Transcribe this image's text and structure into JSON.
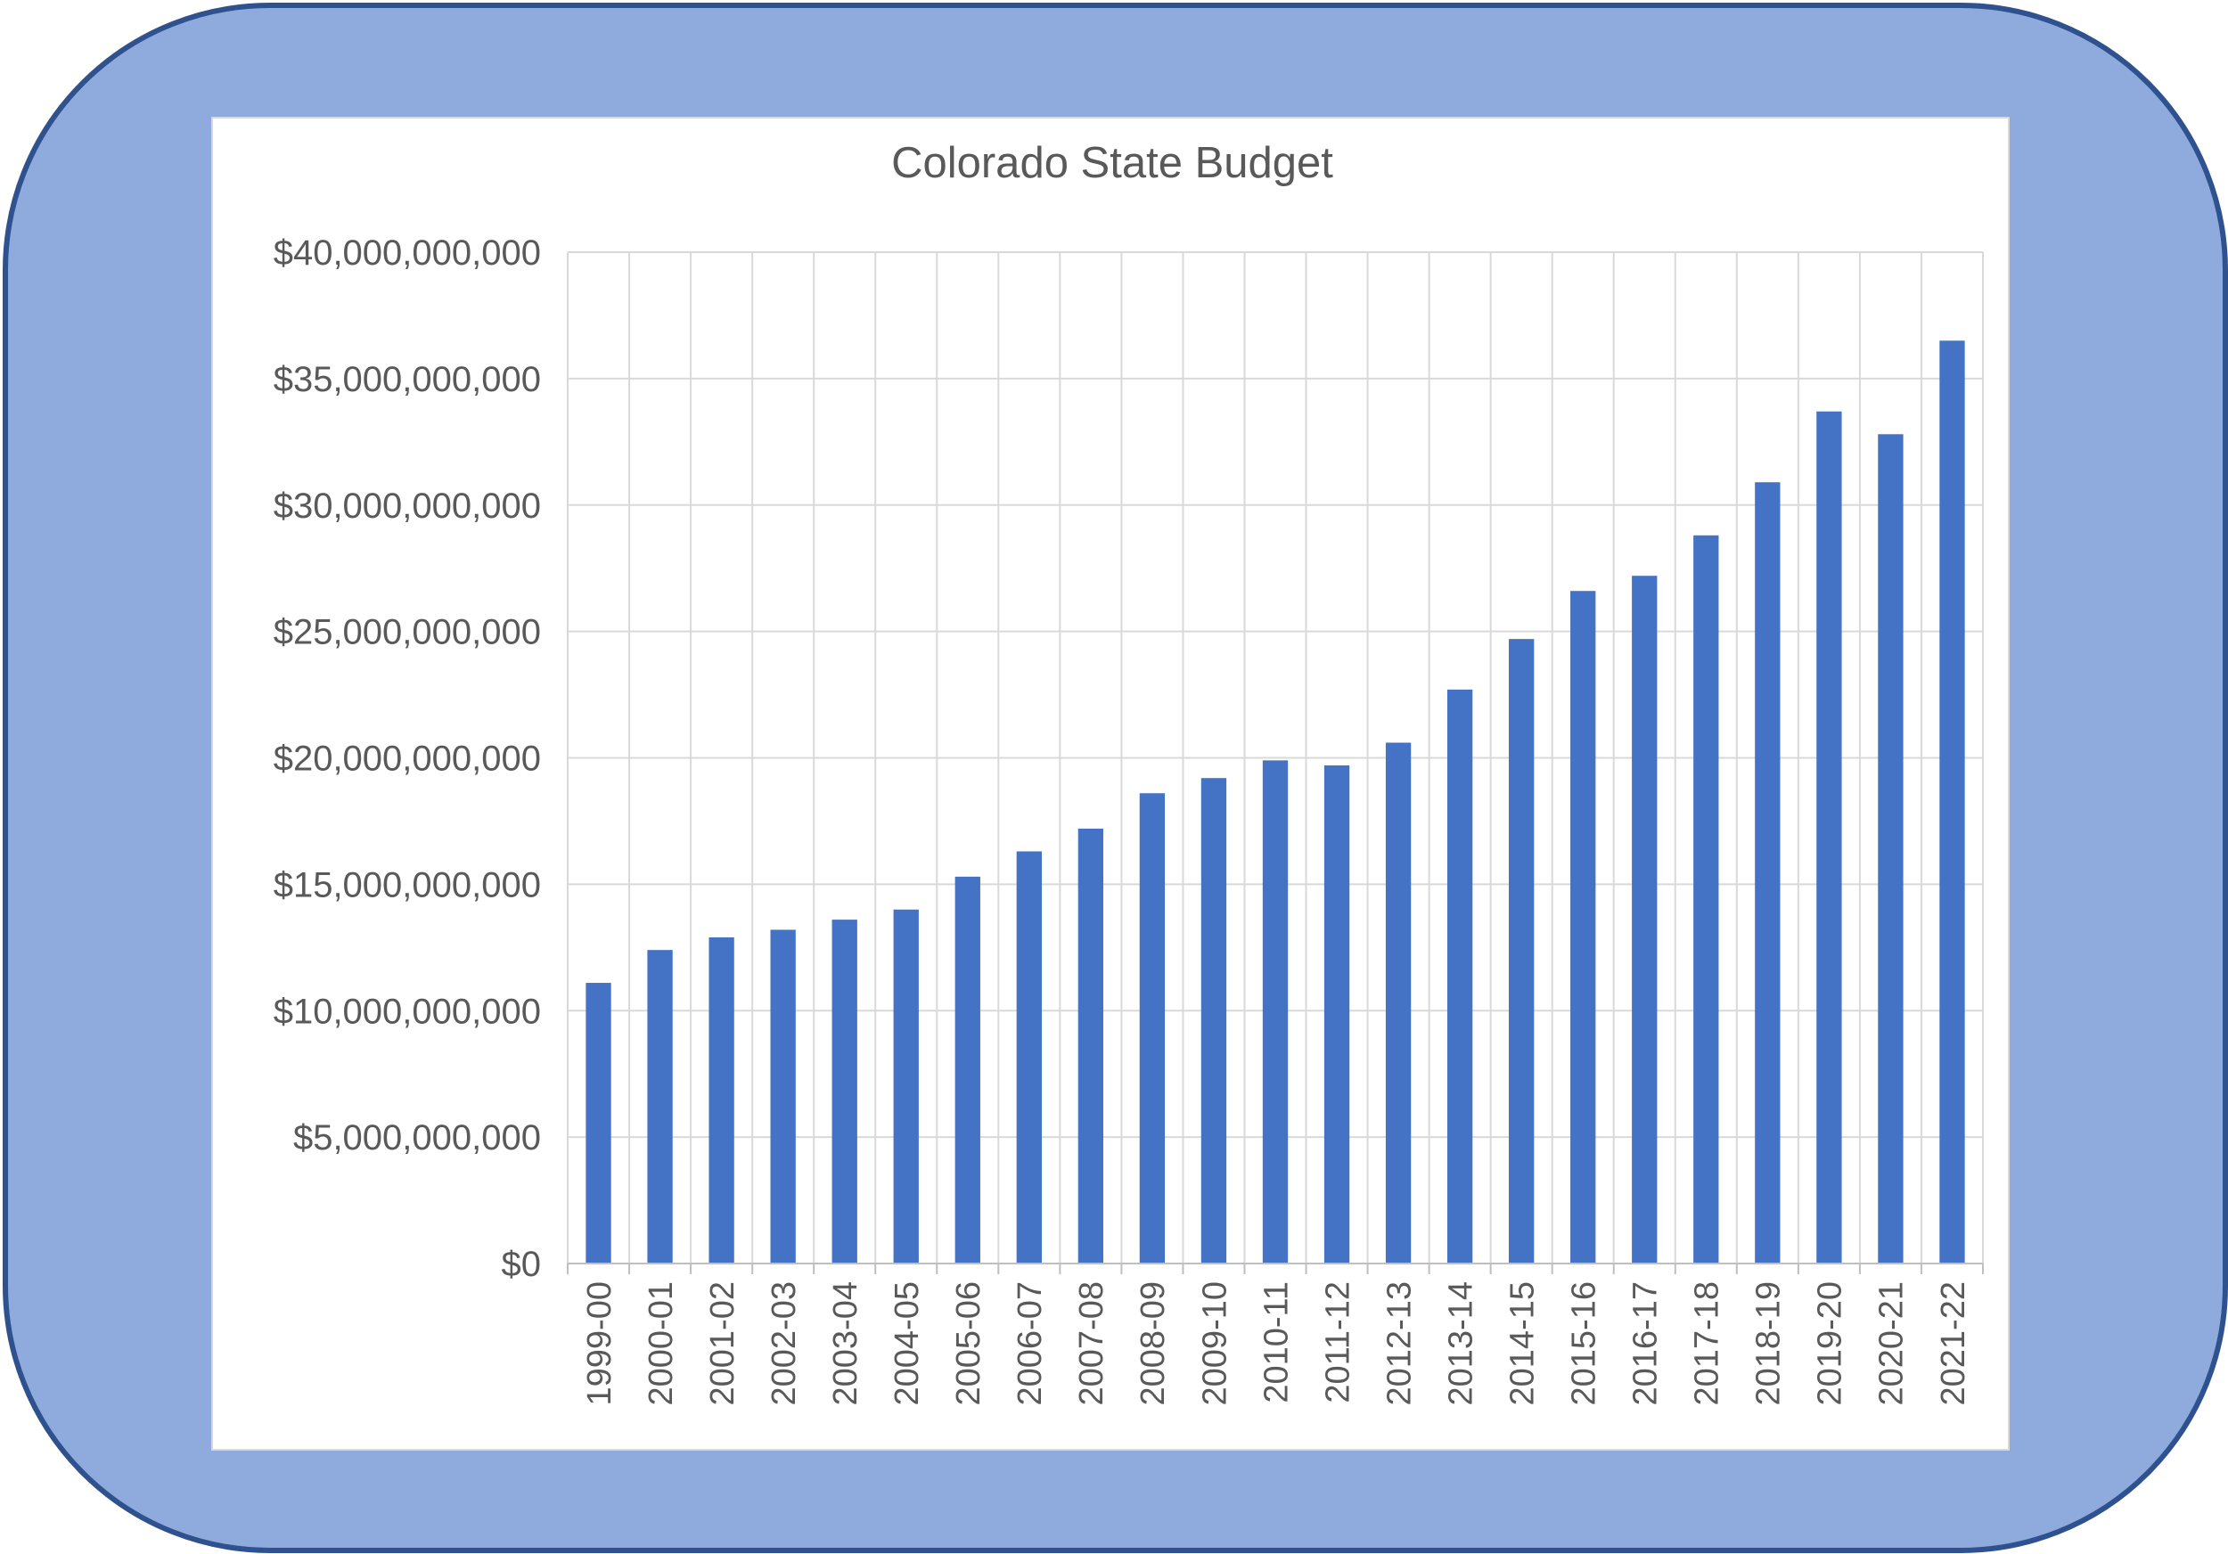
{
  "chart_data": {
    "type": "bar",
    "title": "Colorado State Budget",
    "xlabel": "",
    "ylabel": "",
    "ylim": [
      0,
      40000000000
    ],
    "grid": true,
    "legend": "none",
    "y_ticks": [
      0,
      5000000000,
      10000000000,
      15000000000,
      20000000000,
      25000000000,
      30000000000,
      35000000000,
      40000000000
    ],
    "y_tick_labels": [
      "$0",
      "$5,000,000,000",
      "$10,000,000,000",
      "$15,000,000,000",
      "$20,000,000,000",
      "$25,000,000,000",
      "$30,000,000,000",
      "$35,000,000,000",
      "$40,000,000,000"
    ],
    "categories": [
      "1999-00",
      "2000-01",
      "2001-02",
      "2002-03",
      "2003-04",
      "2004-05",
      "2005-06",
      "2006-07",
      "2007-08",
      "2008-09",
      "2009-10",
      "2010-11",
      "2011-12",
      "2012-13",
      "2013-14",
      "2014-15",
      "2015-16",
      "2016-17",
      "2017-18",
      "2018-19",
      "2019-20",
      "2020-21",
      "2021-22"
    ],
    "values": [
      11100000000,
      12400000000,
      12900000000,
      13200000000,
      13600000000,
      14000000000,
      15300000000,
      16300000000,
      17200000000,
      18600000000,
      19200000000,
      19900000000,
      19700000000,
      20600000000,
      22700000000,
      24700000000,
      26600000000,
      27200000000,
      28800000000,
      30900000000,
      33700000000,
      32800000000,
      36500000000
    ],
    "bar_color": "#4472c4"
  }
}
